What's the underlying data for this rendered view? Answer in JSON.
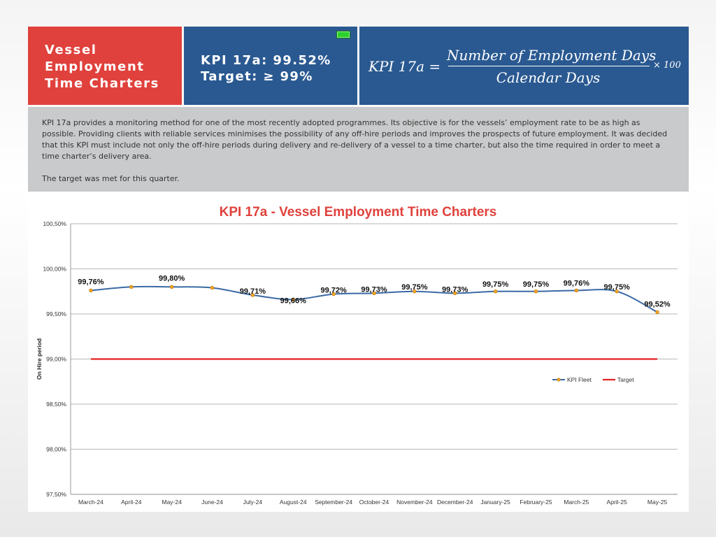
{
  "header": {
    "title_lines": [
      "Vessel",
      "Employment",
      "Time Charters"
    ],
    "kpi_line": "KPI 17a: 99.52%",
    "target_line": "Target: ≥ 99%",
    "formula": {
      "lhs": "KPI  17a  =",
      "numerator": "Number of Employment Days",
      "denominator": "Calendar Days",
      "multiplier": "× 100"
    }
  },
  "description": {
    "paragraph": "KPI 17a provides a monitoring method for one of the most recently adopted programmes. Its objective is for the vessels’ employment rate to be as high as possible. Providing clients with reliable services minimises the possibility of any off-hire periods and improves the prospects of future employment. It was decided that this KPI must include not only the off-hire periods during delivery and re-delivery of a vessel to a time charter, but also the time required in order to meet a time charter’s delivery area.",
    "conclusion": "The target was met for this quarter."
  },
  "colors": {
    "red_accent": "#e0413c",
    "blue_panel": "#2a5991",
    "series_line": "#3b6aa5",
    "marker_fill": "#f5a623",
    "target_line": "#e32020",
    "status_led": "#2bd02b"
  },
  "chart_data": {
    "type": "line",
    "title": "KPI 17a - Vessel Employment Time Charters",
    "ylabel": "On Hire period",
    "xlabel": "",
    "ylim": [
      97.5,
      100.5
    ],
    "yticks": [
      100.5,
      100.0,
      99.5,
      99.0,
      98.5,
      98.0,
      97.5
    ],
    "ytick_labels": [
      "100,50%",
      "100,00%",
      "99,50%",
      "99,00%",
      "98,50%",
      "98,00%",
      "97,50%"
    ],
    "grid": true,
    "legend_position": "right",
    "categories": [
      "March-24",
      "April-24",
      "May-24",
      "June-24",
      "July-24",
      "August-24",
      "September-24",
      "October-24",
      "November-24",
      "December-24",
      "January-25",
      "February-25",
      "March-25",
      "April-25",
      "May-25"
    ],
    "series": [
      {
        "name": "KPI Fleet",
        "values": [
          99.76,
          99.8,
          99.8,
          99.79,
          99.71,
          99.66,
          99.72,
          99.73,
          99.75,
          99.73,
          99.75,
          99.75,
          99.76,
          99.75,
          99.52
        ],
        "labels": [
          "99,76%",
          "",
          "99,80%",
          "",
          "99,71%",
          "99,66%",
          "99,72%",
          "99,73%",
          "99,75%",
          "99,73%",
          "99,75%",
          "99,75%",
          "99,76%",
          "99,75%",
          "99,52%"
        ]
      },
      {
        "name": "Target",
        "values": [
          99.0,
          99.0,
          99.0,
          99.0,
          99.0,
          99.0,
          99.0,
          99.0,
          99.0,
          99.0,
          99.0,
          99.0,
          99.0,
          99.0,
          99.0
        ]
      }
    ]
  }
}
